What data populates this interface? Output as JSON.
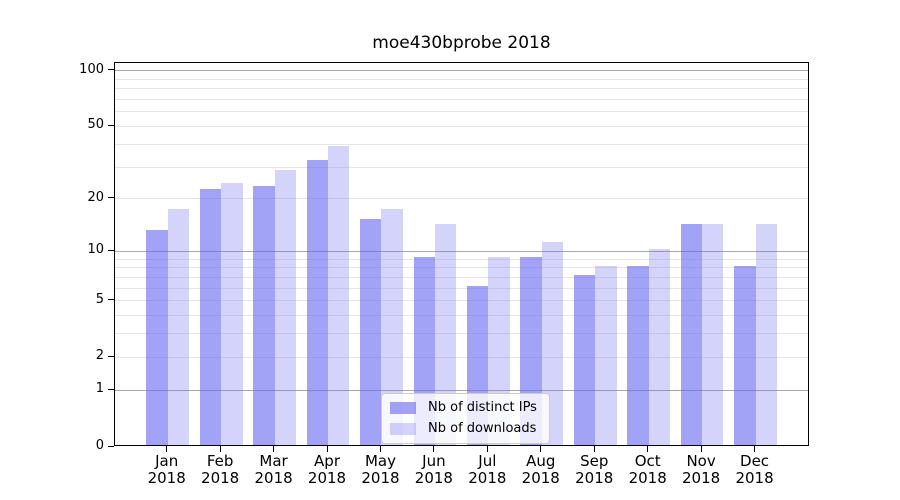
{
  "title": "moe430bprobe 2018",
  "legend": {
    "items": [
      {
        "label": "Nb of distinct IPs",
        "swatch": "dark-periwinkle"
      },
      {
        "label": "Nb of downloads",
        "swatch": "light-periwinkle"
      }
    ]
  },
  "colors": {
    "bar_distinct_ips": "#a2a2f2",
    "bar_downloads": "#d4d4fa",
    "gridline_power10": "#a9a9a9",
    "gridline_minor": "#e6e6e6",
    "axis": "#000000"
  },
  "chart_data": {
    "type": "bar",
    "title": "moe430bprobe 2018",
    "xlabel": "",
    "ylabel": "",
    "yscale": "log1p",
    "ylim": [
      0,
      110
    ],
    "grid": true,
    "legend_position": "lower center",
    "categories": [
      "Jan",
      "Feb",
      "Mar",
      "Apr",
      "May",
      "Jun",
      "Jul",
      "Aug",
      "Sep",
      "Oct",
      "Nov",
      "Dec"
    ],
    "category_year": "2018",
    "y_major_ticks": [
      0,
      1,
      2,
      5,
      10,
      20,
      50,
      100
    ],
    "y_major_tick_labels": [
      "0",
      "1",
      "2",
      "5",
      "10",
      "20",
      "50",
      "100"
    ],
    "y_minor_gridlines": [
      3,
      4,
      6,
      7,
      8,
      9,
      30,
      40,
      60,
      70,
      80,
      90
    ],
    "series": [
      {
        "name": "Nb of distinct IPs",
        "values": [
          13,
          22,
          23,
          32,
          15,
          9,
          6,
          9,
          7,
          8,
          14,
          8
        ]
      },
      {
        "name": "Nb of downloads",
        "values": [
          17,
          24,
          28,
          38,
          17,
          14,
          9,
          11,
          8,
          10,
          14,
          14
        ]
      }
    ]
  }
}
